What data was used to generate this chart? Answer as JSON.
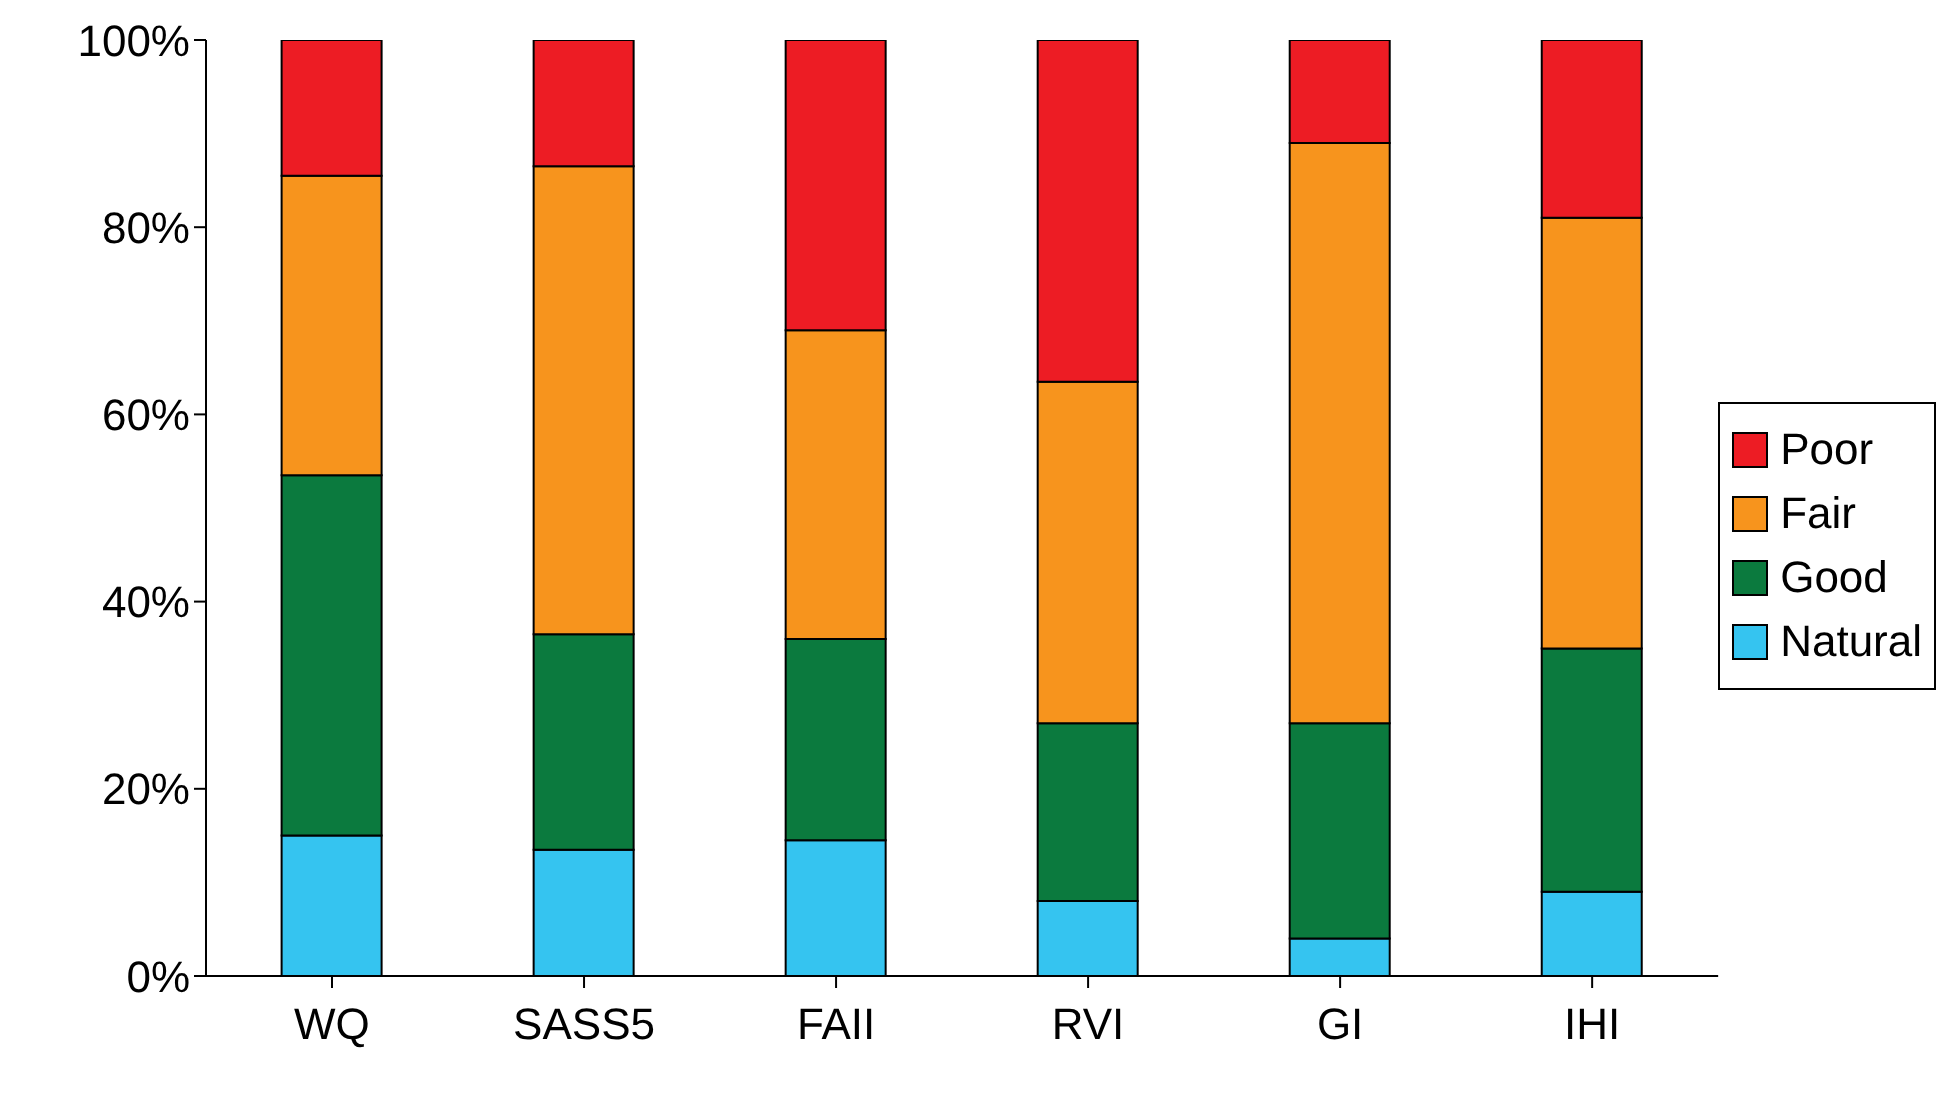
{
  "chart_data": {
    "type": "bar",
    "stacked": true,
    "categories": [
      "WQ",
      "SASS5",
      "FAII",
      "RVI",
      "GI",
      "IHI"
    ],
    "series": [
      {
        "name": "Natural",
        "color": "#35c4f0",
        "values": [
          15,
          13.5,
          14.5,
          8,
          4,
          9
        ]
      },
      {
        "name": "Good",
        "color": "#0b7a3e",
        "values": [
          38.5,
          23,
          21.5,
          19,
          23,
          26
        ]
      },
      {
        "name": "Fair",
        "color": "#f7941d",
        "values": [
          32,
          50,
          33,
          36.5,
          62,
          46
        ]
      },
      {
        "name": "Poor",
        "color": "#ed1c24",
        "values": [
          14.5,
          13.5,
          31,
          36.5,
          11,
          19
        ]
      }
    ],
    "ylim": [
      0,
      100
    ],
    "yticks": [
      {
        "value": 0,
        "label": "0%"
      },
      {
        "value": 20,
        "label": "20%"
      },
      {
        "value": 40,
        "label": "40%"
      },
      {
        "value": 60,
        "label": "60%"
      },
      {
        "value": 80,
        "label": "80%"
      },
      {
        "value": 100,
        "label": "100%"
      }
    ],
    "grid": false,
    "legend": "right"
  }
}
